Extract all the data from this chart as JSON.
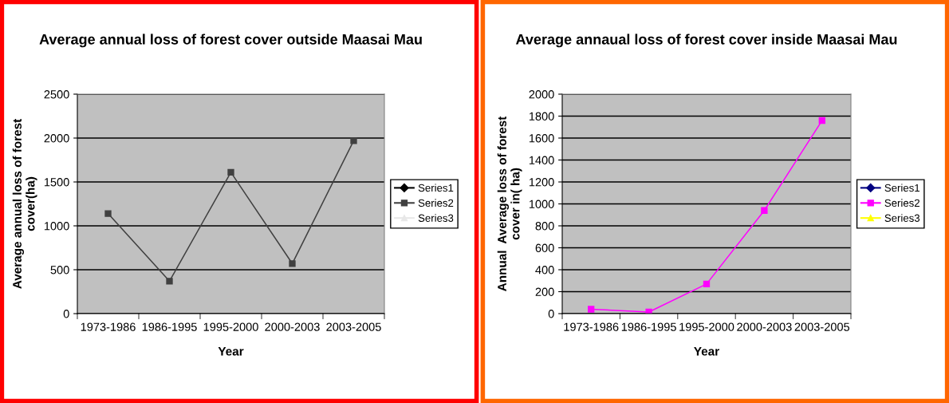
{
  "chart_data": [
    {
      "type": "line",
      "title": "Average annual loss of forest cover outside Maasai Mau",
      "xlabel": "Year",
      "ylabel": "Average annual loss of forest\ncover(ha)",
      "categories": [
        "1973-1986",
        "1986-1995",
        "1995-2000",
        "2000-2003",
        "2003-2005"
      ],
      "series": [
        {
          "name": "Series1",
          "color": "#000000",
          "marker": "diamond",
          "values": [
            null,
            null,
            null,
            null,
            null
          ]
        },
        {
          "name": "Series2",
          "color": "#404040",
          "marker": "square",
          "values": [
            1140,
            370,
            1610,
            570,
            1970
          ]
        },
        {
          "name": "Series3",
          "color": "#e8e8e8",
          "marker": "triangle",
          "values": [
            null,
            null,
            null,
            null,
            null
          ]
        }
      ],
      "ylim": [
        0,
        2500
      ],
      "yticks": [
        0,
        500,
        1000,
        1500,
        2000,
        2500
      ],
      "grid": "y",
      "legend": "right",
      "line_style": "solid"
    },
    {
      "type": "line",
      "title": "Average annaual loss of forest cover inside Maasai Mau",
      "xlabel": "Year",
      "ylabel": "Annual  Average loss of forest\ncover in( ha)",
      "categories": [
        "1973-1986",
        "1986-1995",
        "1995-2000",
        "2000-2003",
        "2003-2005"
      ],
      "series": [
        {
          "name": "Series1",
          "color": "#000080",
          "marker": "diamond",
          "values": [
            null,
            null,
            null,
            null,
            null
          ]
        },
        {
          "name": "Series2",
          "color": "#ff00ff",
          "marker": "square",
          "values": [
            40,
            15,
            270,
            940,
            1760
          ]
        },
        {
          "name": "Series3",
          "color": "#ffff00",
          "marker": "triangle",
          "values": [
            null,
            null,
            null,
            null,
            null
          ]
        }
      ],
      "ylim": [
        0,
        2000
      ],
      "yticks": [
        0,
        200,
        400,
        600,
        800,
        1000,
        1200,
        1400,
        1600,
        1800,
        2000
      ],
      "grid": "y",
      "legend": "right",
      "line_style": "solid"
    }
  ]
}
